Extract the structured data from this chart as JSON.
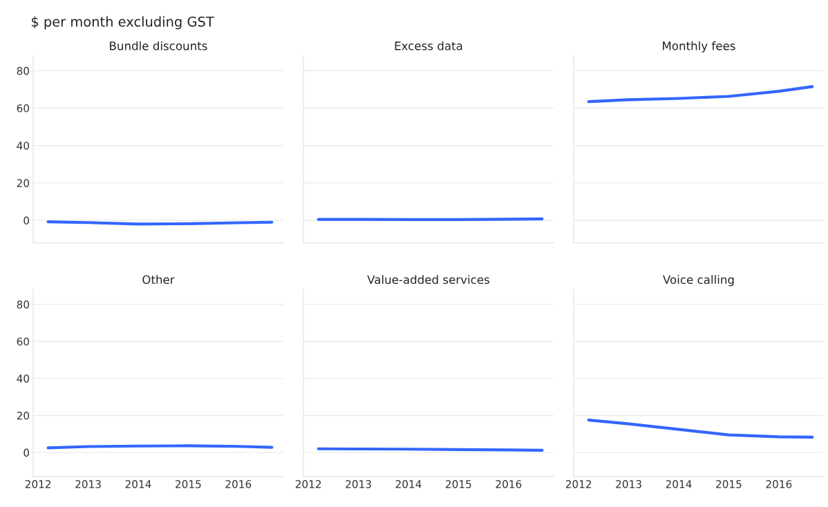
{
  "chart_data": [
    {
      "type": "line",
      "title": "Bundle discounts",
      "ylabel": "$ per month excluding GST",
      "x": [
        2012.2,
        2013,
        2014,
        2015,
        2016,
        2016.67
      ],
      "series": [
        {
          "color": "#3366ff",
          "values": [
            -0.8,
            -1.2,
            -2,
            -1.8,
            -1.3,
            -1
          ]
        }
      ],
      "xlim": [
        2011.9,
        2016.9
      ],
      "ylim": [
        -12,
        88
      ],
      "xticks": [
        2012,
        2013,
        2014,
        2015,
        2016
      ],
      "yticks": [
        0,
        20,
        40,
        60,
        80
      ],
      "grid": "y",
      "tick_labels": "y"
    },
    {
      "type": "line",
      "title": "Excess data",
      "x": [
        2012.2,
        2013,
        2014,
        2015,
        2016,
        2016.67
      ],
      "series": [
        {
          "color": "#3366ff",
          "values": [
            0.5,
            0.5,
            0.4,
            0.4,
            0.6,
            0.8
          ]
        }
      ],
      "xlim": [
        2011.9,
        2016.9
      ],
      "ylim": [
        -12,
        88
      ],
      "xticks": [
        2012,
        2013,
        2014,
        2015,
        2016
      ],
      "yticks": [
        0,
        20,
        40,
        60,
        80
      ],
      "grid": "y",
      "tick_labels": false
    },
    {
      "type": "line",
      "title": "Monthly fees",
      "x": [
        2012.2,
        2013,
        2014,
        2015,
        2016,
        2016.67
      ],
      "series": [
        {
          "color": "#3366ff",
          "values": [
            63.5,
            64.5,
            65.2,
            66.3,
            69,
            71.5
          ]
        }
      ],
      "xlim": [
        2011.9,
        2016.9
      ],
      "ylim": [
        -12,
        88
      ],
      "xticks": [
        2012,
        2013,
        2014,
        2015,
        2016
      ],
      "yticks": [
        0,
        20,
        40,
        60,
        80
      ],
      "grid": "y",
      "tick_labels": false
    },
    {
      "type": "line",
      "title": "Other",
      "x": [
        2012.2,
        2013,
        2014,
        2015,
        2016,
        2016.67
      ],
      "series": [
        {
          "color": "#3366ff",
          "values": [
            2.5,
            3.2,
            3.5,
            3.6,
            3.3,
            2.8
          ]
        }
      ],
      "xlim": [
        2011.9,
        2016.9
      ],
      "ylim": [
        -13,
        88
      ],
      "xticks": [
        2012,
        2013,
        2014,
        2015,
        2016
      ],
      "yticks": [
        0,
        20,
        40,
        60,
        80
      ],
      "grid": "y"
    },
    {
      "type": "line",
      "title": "Value-added services",
      "x": [
        2012.2,
        2013,
        2014,
        2015,
        2016,
        2016.67
      ],
      "series": [
        {
          "color": "#3366ff",
          "values": [
            2,
            1.9,
            1.8,
            1.6,
            1.4,
            1.2
          ]
        }
      ],
      "xlim": [
        2011.9,
        2016.9
      ],
      "ylim": [
        -13,
        88
      ],
      "xticks": [
        2012,
        2013,
        2014,
        2015,
        2016
      ],
      "yticks": [
        0,
        20,
        40,
        60,
        80
      ],
      "grid": "y",
      "tick_labels": "x"
    },
    {
      "type": "line",
      "title": "Voice calling",
      "x": [
        2012.2,
        2013,
        2014,
        2015,
        2016,
        2016.67
      ],
      "series": [
        {
          "color": "#3366ff",
          "values": [
            17.5,
            15.5,
            12.5,
            9.5,
            8.5,
            8.3
          ]
        }
      ],
      "xlim": [
        2011.9,
        2016.9
      ],
      "ylim": [
        -13,
        88
      ],
      "xticks": [
        2012,
        2013,
        2014,
        2015,
        2016
      ],
      "yticks": [
        0,
        20,
        40,
        60,
        80
      ],
      "grid": "y",
      "tick_labels": "x"
    }
  ]
}
